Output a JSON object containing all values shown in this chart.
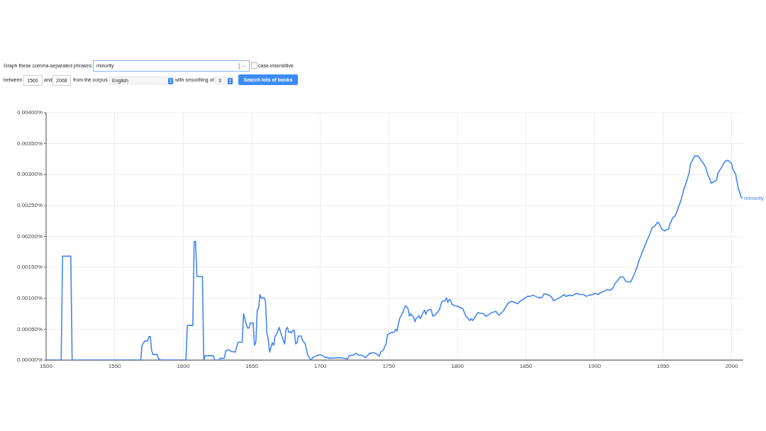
{
  "chart_data": {
    "type": "line",
    "annotations": [
      "Graph these comma-separated phrases:",
      "minority",
      "case-insensitive",
      "between",
      "1500",
      "and",
      "2008",
      "from the corpus",
      "English",
      "with smoothing of",
      "3",
      "Search lots of books"
    ],
    "x": [
      1500,
      1511,
      1512,
      1518,
      1519,
      1569,
      1570,
      1572,
      1574,
      1575,
      1576,
      1577,
      1578,
      1581,
      1582,
      1584,
      1602,
      1603,
      1607,
      1608,
      1609,
      1610,
      1614,
      1615,
      1616,
      1622,
      1623,
      1626,
      1627,
      1630,
      1631,
      1633,
      1635,
      1638,
      1640,
      1643,
      1644,
      1646,
      1647,
      1648,
      1649,
      1650,
      1651,
      1652,
      1653,
      1654,
      1655,
      1656,
      1657,
      1659,
      1660,
      1661,
      1662,
      1663,
      1665,
      1666,
      1667,
      1668,
      1670,
      1671,
      1672,
      1674,
      1675,
      1676,
      1677,
      1678,
      1679,
      1680,
      1681,
      1682,
      1683,
      1684,
      1686,
      1687,
      1689,
      1691,
      1693,
      1695,
      1697,
      1700,
      1703,
      1707,
      1714,
      1720,
      1721,
      1724,
      1726,
      1728,
      1730,
      1733,
      1736,
      1739,
      1741,
      1743,
      1744,
      1746,
      1747,
      1748,
      1749,
      1751,
      1753,
      1754,
      1755,
      1756,
      1757,
      1758,
      1760,
      1762,
      1763,
      1764,
      1765,
      1766,
      1767,
      1768,
      1769,
      1770,
      1771,
      1772,
      1773,
      1774,
      1776,
      1777,
      1778,
      1780,
      1781,
      1782,
      1783,
      1785,
      1787,
      1788,
      1789,
      1791,
      1792,
      1793,
      1794,
      1795,
      1796,
      1798,
      1800,
      1802,
      1804,
      1806,
      1807,
      1809,
      1810,
      1811,
      1813,
      1815,
      1816,
      1819,
      1821,
      1823,
      1825,
      1827,
      1828,
      1830,
      1831,
      1832,
      1834,
      1835,
      1837,
      1839,
      1841,
      1844,
      1845,
      1847,
      1849,
      1851,
      1853,
      1855,
      1857,
      1859,
      1861,
      1862,
      1863,
      1864,
      1867,
      1869,
      1870,
      1873,
      1876,
      1878,
      1879,
      1882,
      1884,
      1885,
      1887,
      1889,
      1892,
      1894,
      1896,
      1899,
      1900,
      1903,
      1904,
      1907,
      1909,
      1911,
      1913,
      1915,
      1917,
      1919,
      1921,
      1923,
      1926,
      1927,
      1929,
      1931,
      1932,
      1934,
      1936,
      1938,
      1940,
      1942,
      1944,
      1946,
      1947,
      1949,
      1951,
      1954,
      1955,
      1957,
      1959,
      1961,
      1963,
      1965,
      1967,
      1969,
      1970,
      1973,
      1975,
      1976,
      1978,
      1979,
      1981,
      1983,
      1984,
      1985,
      1987,
      1989,
      1990,
      1993,
      1995,
      1997,
      1998,
      2000,
      2001,
      2003,
      2004,
      2005,
      2006,
      2007,
      2008
    ],
    "series": [
      {
        "name": "minority",
        "color": "#4285f4",
        "values": [
          0,
          0,
          0.00168,
          0.00168,
          0,
          0,
          0.00024,
          0.00031,
          0.00031,
          0.00038,
          0.00038,
          0.00015,
          9e-05,
          9e-05,
          2e-05,
          0,
          0,
          0.00056,
          0.00056,
          0.00192,
          0.00192,
          0.00135,
          0.00135,
          0,
          7e-05,
          7e-05,
          0,
          0,
          3e-05,
          3e-05,
          0.00015,
          0.00017,
          0.00014,
          0.00013,
          0.00029,
          0.00029,
          0.00075,
          0.00058,
          0.00052,
          0.00052,
          0.0006,
          0.0006,
          0.0006,
          0.00024,
          0.00029,
          0.00081,
          0.00083,
          0.00106,
          0.001,
          0.00101,
          0.00096,
          0.00044,
          0.00034,
          0.00013,
          0.00028,
          0.00024,
          0.00039,
          0.00041,
          0.00053,
          0.00045,
          0.00039,
          0.00026,
          0.0005,
          0.00053,
          0.00045,
          0.00046,
          0.00044,
          0.00048,
          0.00048,
          0.00026,
          0.00028,
          0.00039,
          0.00039,
          0.00032,
          0.00026,
          7e-05,
          0,
          5e-05,
          7e-05,
          9e-05,
          5e-05,
          3e-05,
          4e-05,
          2e-05,
          7e-05,
          8e-05,
          0.00011,
          8e-05,
          8e-05,
          4e-05,
          0.00011,
          0.00012,
          0.0001,
          6e-05,
          0.00013,
          0.00016,
          0.00022,
          0.00026,
          0.00041,
          0.00044,
          0.00045,
          0.00045,
          0.0005,
          0.00047,
          0.00059,
          0.00068,
          0.00076,
          0.00088,
          0.00086,
          0.00083,
          0.00071,
          0.00075,
          0.00072,
          0.0007,
          0.00062,
          0.00068,
          0.00069,
          0.00072,
          0.00067,
          0.00072,
          0.00081,
          0.00074,
          0.0008,
          0.00082,
          0.00081,
          0.00071,
          0.00072,
          0.00076,
          0.00082,
          0.00091,
          0.00095,
          0.00096,
          0.00101,
          0.00093,
          0.00098,
          0.00097,
          0.0009,
          0.00088,
          0.00087,
          0.00085,
          0.00083,
          0.00072,
          0.00069,
          0.00064,
          0.00067,
          0.00064,
          0.0007,
          0.00077,
          0.00076,
          0.00075,
          0.00071,
          0.00074,
          0.00077,
          0.00078,
          0.00079,
          0.00073,
          0.00074,
          0.00076,
          0.00081,
          0.00085,
          0.00092,
          0.00095,
          0.00094,
          0.00091,
          0.00094,
          0.00097,
          0.001,
          0.00103,
          0.00103,
          0.00105,
          0.00103,
          0.00101,
          0.00101,
          0.00102,
          0.00107,
          0.00107,
          0.00105,
          0.00101,
          0.00096,
          0.00099,
          0.00103,
          0.00106,
          0.00103,
          0.00105,
          0.00104,
          0.00106,
          0.00108,
          0.00106,
          0.00106,
          0.00103,
          0.00105,
          0.00106,
          0.00108,
          0.00106,
          0.00109,
          0.00111,
          0.00114,
          0.00113,
          0.00115,
          0.00124,
          0.00129,
          0.00135,
          0.00134,
          0.00127,
          0.00126,
          0.00129,
          0.00139,
          0.0015,
          0.00158,
          0.0017,
          0.00181,
          0.00192,
          0.00202,
          0.00214,
          0.00217,
          0.00223,
          0.00221,
          0.00212,
          0.00209,
          0.00212,
          0.0022,
          0.0023,
          0.00234,
          0.00246,
          0.00258,
          0.00275,
          0.00288,
          0.00303,
          0.00317,
          0.0033,
          0.0033,
          0.00329,
          0.00322,
          0.0032,
          0.00312,
          0.00297,
          0.00294,
          0.00286,
          0.00288,
          0.00291,
          0.00302,
          0.00313,
          0.00321,
          0.00323,
          0.00322,
          0.00317,
          0.00308,
          0.003,
          0.00288,
          0.00276,
          0.00271,
          0.00263,
          0.00262
        ]
      }
    ],
    "xlim": [
      1500,
      2008
    ],
    "xticks": [
      1500,
      1550,
      1600,
      1650,
      1700,
      1750,
      1800,
      1850,
      1900,
      1950,
      2000
    ],
    "ylim": [
      0,
      0.004
    ],
    "yticks": [
      {
        "value": 0,
        "label": "0.00000%"
      },
      {
        "value": 0.0005,
        "label": "0.00050%"
      },
      {
        "value": 0.001,
        "label": "0.00100%"
      },
      {
        "value": 0.0015,
        "label": "0.00150%"
      },
      {
        "value": 0.002,
        "label": "0.00200%"
      },
      {
        "value": 0.0025,
        "label": "0.00250%"
      },
      {
        "value": 0.003,
        "label": "0.00300%"
      },
      {
        "value": 0.0035,
        "label": "0.00350%"
      },
      {
        "value": 0.004,
        "label": "0.00400%"
      }
    ],
    "grid": true,
    "legend": false,
    "marker": "none",
    "line_style": "solid"
  }
}
